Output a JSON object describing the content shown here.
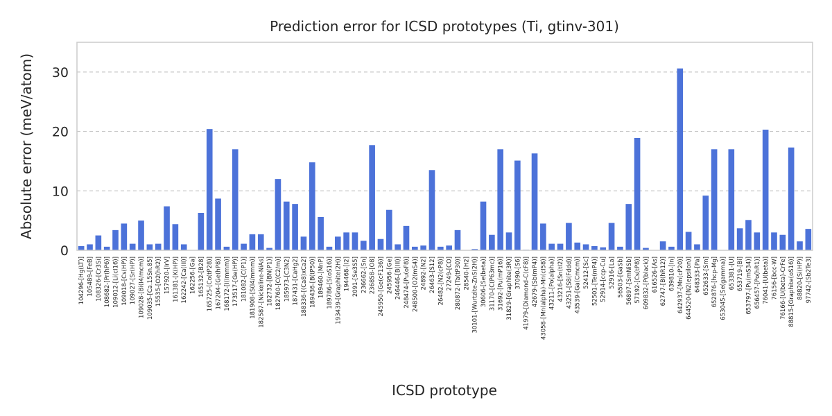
{
  "chart_data": {
    "type": "bar",
    "title": "Prediction error for ICSD prototypes (Ti, gtinv-301)",
    "xlabel": "ICSD prototype",
    "ylabel": "Absolute error (meV/atom)",
    "ylim": [
      0,
      35
    ],
    "yticks": [
      0,
      10,
      20,
      30
    ],
    "grid": "y-dashed",
    "bar_color": "#4c72d9",
    "categories": [
      "104296-[Hg(LT)]",
      "105489-[FeB]",
      "108326-[Cr3Si]",
      "108682-[Pr(hP6)]",
      "109012-[Li(cI16)]",
      "109018-[Cs(HP)]",
      "109027-[Sr(HP)]",
      "109028-[Bi(I4/mcm)]",
      "109035-[Ca.15Sn.85]",
      "15535-[O2(hR2)]",
      "157920-[IrV]",
      "161381-[K(HP)]",
      "162242-[Ca(III)]",
      "162256-[Ga]",
      "165132-[B28]",
      "165725-[Co(tP28)]",
      "167204-[Ge(hP8)]",
      "168172-[I(Immm)]",
      "173517-[Ge(HP)]",
      "181082-[C(P1)]",
      "181908-[S(I4/mmm)]",
      "182587-[Nickeline-NiAs]",
      "182732-[BN(P1)]",
      "182760-[C(C2/m)]",
      "185973-[C3N2]",
      "187431-[CaHg2]",
      "188336-[(Ca8)xCa2]",
      "189436-[B(tP50)]",
      "189460-[MnP]",
      "189786-[S(oS16)]",
      "193439-[Graphite(2H)]",
      "194468-[I2]",
      "2091-[Se3S5]",
      "236662-[Sn]",
      "236858-[O8]",
      "245950-[Ge(cF136)]",
      "245956-[Ge]",
      "246446-[B(III)]",
      "248474-[Pu(oF8)]",
      "248500-[O2(mS4)]",
      "24892-[N2]",
      "26463-[S12]",
      "26482-[N2(cP8)]",
      "27249-[CO]",
      "280872-[Ta(tP30)]",
      "28540-[H2]",
      "30101-[Wurtzite-ZnS(2H)]",
      "30606-[Se(beta)]",
      "31170-[C(P63mc)]",
      "31692-[Pu(mP16)]",
      "31829-[Graphite(3R)]",
      "37090-[S6]",
      "41979-[Diamond-C(cF8)]",
      "42679-[Sb(mP4)]",
      "43058-[Mn(alpha)-Mn(cI58)]",
      "43211-[Po(alpha)]",
      "43216-[Sn(tI2)]",
      "43251-[S8(Fddd)]",
      "43539-[Ga(Cmcm)]",
      "52412-[Sc]",
      "52501-[Te(mP4)]",
      "52914-[ccp-Cu]",
      "52916-[La]",
      "56503-[GaSb]",
      "56897-[SmNiSb]",
      "57192-[Cs(tP8)]",
      "609832-[P(black)]",
      "616526-[As]",
      "62747-[B(hR12)]",
      "639810-[In]",
      "642937-[Mn(cP20)]",
      "644520-[N2(epsilon)]",
      "648333-[Pa]",
      "652633-[Sm]",
      "652876-[hcp-Mg]",
      "653045-[Se(gamma)]",
      "653381-[U]",
      "653719-[Bi]",
      "653797-[Pu(mS34)]",
      "656457-[Po(hR1)]",
      "76041-[U(beta)]",
      "76156-[bcc-W]",
      "76166-[U(beta)-CrFe]",
      "88815-[Graphite(oS16)]",
      "88820-[Si(HP)]",
      "97742-[Sb2Te3]"
    ],
    "values": [
      0.7,
      1.0,
      2.5,
      0.6,
      3.4,
      4.5,
      1.1,
      5.0,
      1.0,
      1.1,
      7.4,
      4.4,
      1.0,
      0.05,
      6.3,
      20.4,
      8.7,
      0.6,
      17.0,
      1.1,
      2.7,
      2.7,
      0.4,
      12.0,
      8.2,
      7.8,
      2.3,
      14.8,
      5.6,
      0.6,
      2.3,
      3.0,
      3.0,
      1.6,
      17.7,
      1.9,
      6.8,
      1.0,
      4.1,
      0.6,
      0.8,
      13.5,
      0.6,
      0.8,
      3.4,
      0.05,
      0.2,
      8.2,
      2.6,
      17.0,
      3.0,
      15.1,
      0.1,
      16.3,
      4.5,
      1.1,
      1.1,
      4.6,
      1.3,
      1.0,
      0.7,
      0.5,
      4.6,
      0.6,
      7.8,
      18.9,
      0.4,
      0.05,
      1.5,
      0.6,
      30.6,
      3.1,
      1.0,
      9.2,
      17.0,
      0.05,
      17.0,
      3.7,
      5.1,
      3.0,
      20.3,
      3.0,
      2.6,
      17.3,
      1.5,
      3.6
    ]
  }
}
